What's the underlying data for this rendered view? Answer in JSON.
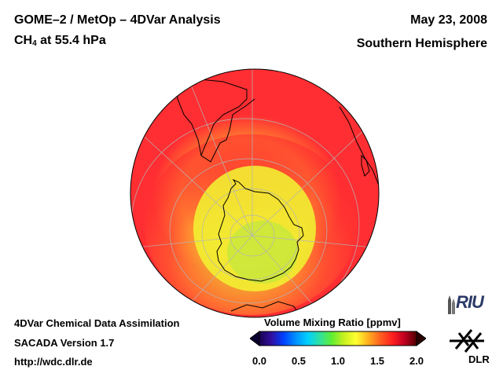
{
  "header": {
    "title_line1": "GOME–2 / MetOp – 4DVar Analysis",
    "species_main": "CH",
    "species_sub": "4",
    "species_rest": " at 55.4 hPa",
    "date": "May 23, 2008",
    "hemisphere": "Southern Hemisphere"
  },
  "footer": {
    "line1": "4DVar Chemical Data Assimilation",
    "line2": "SACADA Version 1.7",
    "line3": "http://wdc.dlr.de"
  },
  "colorbar": {
    "title": "Volume Mixing Ratio [ppmv]",
    "min": 0.0,
    "max": 2.0,
    "ticks": [
      "0.0",
      "0.5",
      "1.0",
      "1.5",
      "2.0"
    ],
    "colors": [
      "#1a0050",
      "#3010a0",
      "#0040ff",
      "#0090ff",
      "#00d0ff",
      "#30e0a0",
      "#60ee30",
      "#c8f020",
      "#ffff30",
      "#ffb020",
      "#ff6020",
      "#ff2020",
      "#c00020",
      "#500000"
    ]
  },
  "map": {
    "projection": "south polar orthographic",
    "field_colors": {
      "high": "#ff2a30",
      "mid": "#ff7030",
      "low": "#f0f030"
    },
    "grid_color": "#b0b0b0",
    "coast_color": "#000000"
  },
  "logos": {
    "riu": "RIU",
    "dlr": "DLR"
  }
}
